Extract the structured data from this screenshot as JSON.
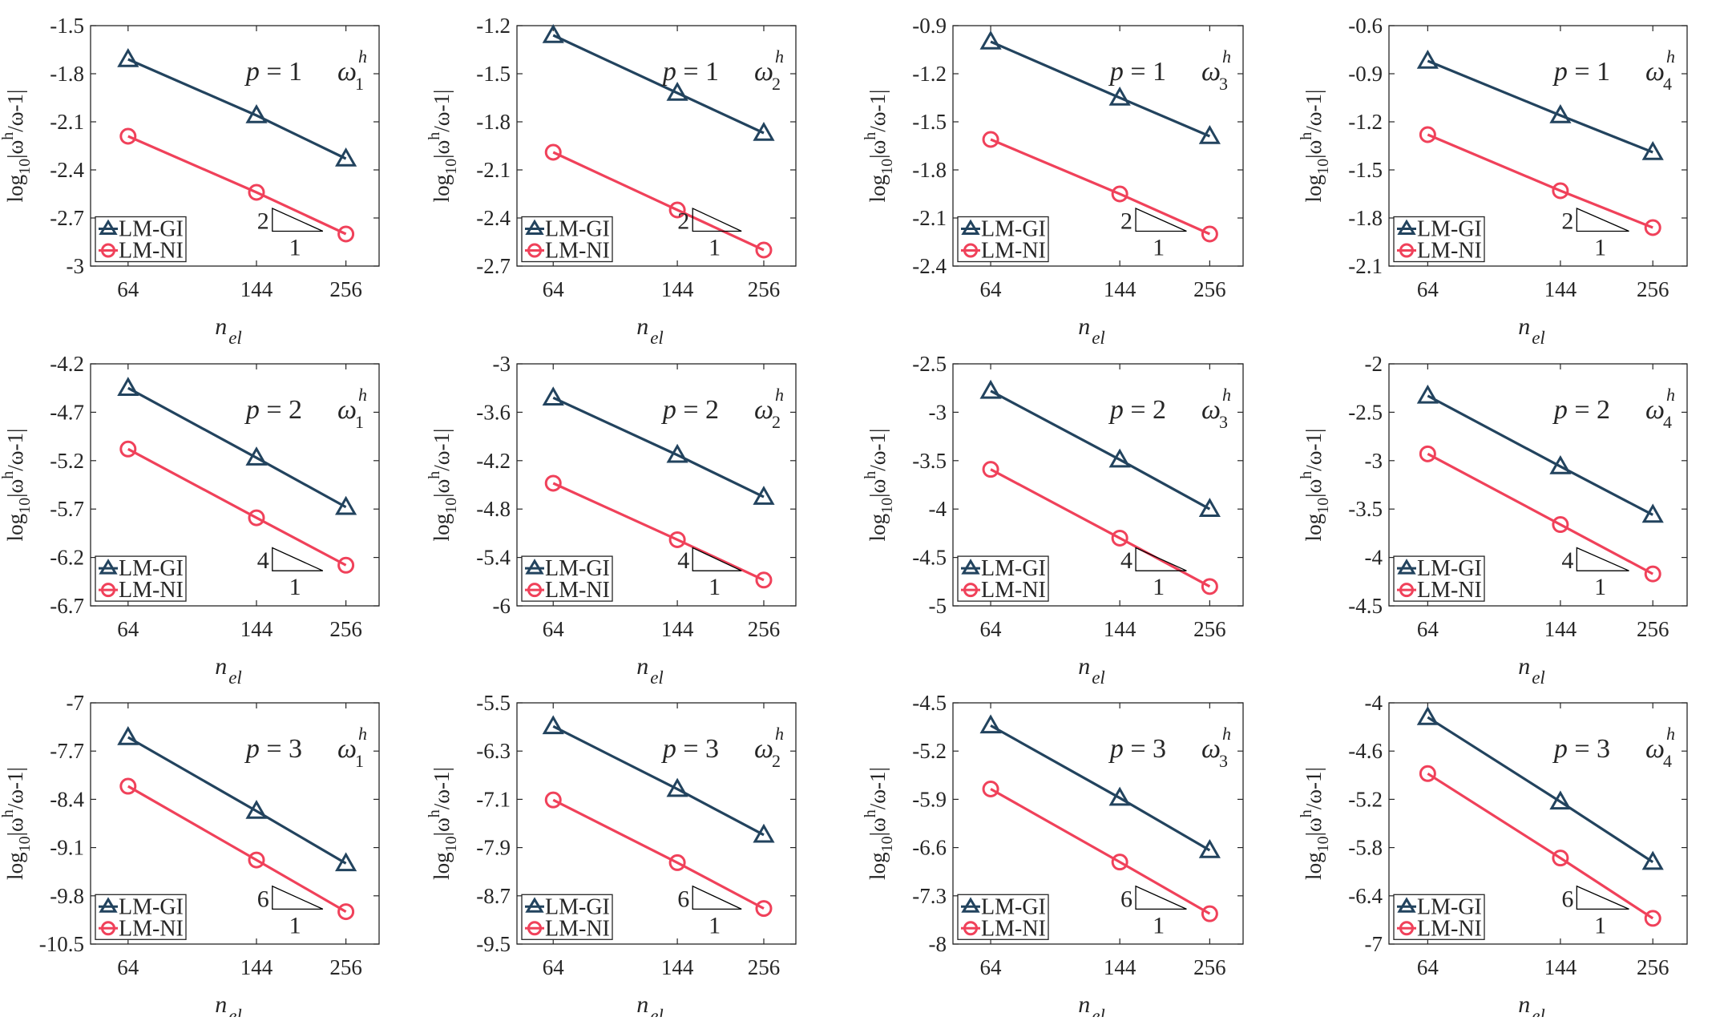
{
  "figure": {
    "colors": {
      "LM-GI": "#22435E",
      "LM-NI": "#F0415A",
      "axis": "#262626"
    },
    "legend": [
      {
        "label": "LM-GI",
        "marker": "triangle-icon",
        "color": "#22435E"
      },
      {
        "label": "LM-NI",
        "marker": "circle-icon",
        "color": "#F0415A"
      }
    ],
    "xlabel_main": "n",
    "xlabel_sub": "el",
    "ylabel": {
      "prefix": "log",
      "sub": "10",
      "body": "|ω",
      "sup": "h",
      "tail": "/ω-1|"
    }
  },
  "chart_data": [
    {
      "type": "line",
      "row": 1,
      "col": 1,
      "title": "p = 1  ω1^h",
      "p": "1",
      "mode": "1",
      "categories": [
        64,
        144,
        256
      ],
      "xticks": [
        "64",
        "144",
        "256"
      ],
      "ylim": [
        -3,
        -1.5
      ],
      "yticks": [
        "-1.5",
        "-1.8",
        "-2.1",
        "-2.4",
        "-2.7",
        "-3"
      ],
      "xlabel": "n_el",
      "ylabel": "log10|ω^h/ω-1|",
      "slope": "2",
      "slope_run": "1",
      "series": [
        {
          "name": "LM-GI",
          "values": [
            -1.71,
            -2.06,
            -2.33
          ]
        },
        {
          "name": "LM-NI",
          "values": [
            -2.19,
            -2.54,
            -2.8
          ]
        }
      ]
    },
    {
      "type": "line",
      "row": 1,
      "col": 2,
      "title": "p = 1  ω2^h",
      "p": "1",
      "mode": "2",
      "categories": [
        64,
        144,
        256
      ],
      "xticks": [
        "64",
        "144",
        "256"
      ],
      "ylim": [
        -2.7,
        -1.2
      ],
      "yticks": [
        "-1.2",
        "-1.5",
        "-1.8",
        "-2.1",
        "-2.4",
        "-2.7"
      ],
      "xlabel": "n_el",
      "ylabel": "log10|ω^h/ω-1|",
      "slope": "2",
      "slope_run": "1",
      "series": [
        {
          "name": "LM-GI",
          "values": [
            -1.26,
            -1.62,
            -1.87
          ]
        },
        {
          "name": "LM-NI",
          "values": [
            -1.99,
            -2.35,
            -2.6
          ]
        }
      ]
    },
    {
      "type": "line",
      "row": 1,
      "col": 3,
      "title": "p = 1  ω3^h",
      "p": "1",
      "mode": "3",
      "categories": [
        64,
        144,
        256
      ],
      "xticks": [
        "64",
        "144",
        "256"
      ],
      "ylim": [
        -2.4,
        -0.9
      ],
      "yticks": [
        "-0.9",
        "-1.2",
        "-1.5",
        "-1.8",
        "-2.1",
        "-2.4"
      ],
      "xlabel": "n_el",
      "ylabel": "log10|ω^h/ω-1|",
      "slope": "2",
      "slope_run": "1",
      "series": [
        {
          "name": "LM-GI",
          "values": [
            -1.0,
            -1.35,
            -1.59
          ]
        },
        {
          "name": "LM-NI",
          "values": [
            -1.61,
            -1.95,
            -2.2
          ]
        }
      ]
    },
    {
      "type": "line",
      "row": 1,
      "col": 4,
      "title": "p = 1  ω4^h",
      "p": "1",
      "mode": "4",
      "categories": [
        64,
        144,
        256
      ],
      "xticks": [
        "64",
        "144",
        "256"
      ],
      "ylim": [
        -2.1,
        -0.6
      ],
      "yticks": [
        "-0.6",
        "-0.9",
        "-1.2",
        "-1.5",
        "-1.8",
        "-2.1"
      ],
      "xlabel": "n_el",
      "ylabel": "log10|ω^h/ω-1|",
      "slope": "2",
      "slope_run": "1",
      "series": [
        {
          "name": "LM-GI",
          "values": [
            -0.82,
            -1.16,
            -1.39
          ]
        },
        {
          "name": "LM-NI",
          "values": [
            -1.28,
            -1.63,
            -1.86
          ]
        }
      ]
    },
    {
      "type": "line",
      "row": 2,
      "col": 1,
      "title": "p = 2  ω1^h",
      "p": "2",
      "mode": "1",
      "categories": [
        64,
        144,
        256
      ],
      "xticks": [
        "64",
        "144",
        "256"
      ],
      "ylim": [
        -6.7,
        -4.2
      ],
      "yticks": [
        "-4.2",
        "-4.7",
        "-5.2",
        "-5.7",
        "-6.2",
        "-6.7"
      ],
      "xlabel": "n_el",
      "ylabel": "log10|ω^h/ω-1|",
      "slope": "4",
      "slope_run": "1",
      "series": [
        {
          "name": "LM-GI",
          "values": [
            -4.45,
            -5.17,
            -5.68
          ]
        },
        {
          "name": "LM-NI",
          "values": [
            -5.08,
            -5.79,
            -6.28
          ]
        }
      ]
    },
    {
      "type": "line",
      "row": 2,
      "col": 2,
      "title": "p = 2  ω2^h",
      "p": "2",
      "mode": "2",
      "categories": [
        64,
        144,
        256
      ],
      "xticks": [
        "64",
        "144",
        "256"
      ],
      "ylim": [
        -6,
        -3
      ],
      "yticks": [
        "-3",
        "-3.6",
        "-4.2",
        "-4.8",
        "-5.4",
        "-6"
      ],
      "xlabel": "n_el",
      "ylabel": "log10|ω^h/ω-1|",
      "slope": "4",
      "slope_run": "1",
      "series": [
        {
          "name": "LM-GI",
          "values": [
            -3.42,
            -4.13,
            -4.65
          ]
        },
        {
          "name": "LM-NI",
          "values": [
            -4.48,
            -5.18,
            -5.68
          ]
        }
      ]
    },
    {
      "type": "line",
      "row": 2,
      "col": 3,
      "title": "p = 2  ω3^h",
      "p": "2",
      "mode": "3",
      "categories": [
        64,
        144,
        256
      ],
      "xticks": [
        "64",
        "144",
        "256"
      ],
      "ylim": [
        -5,
        -2.5
      ],
      "yticks": [
        "-2.5",
        "-3",
        "-3.5",
        "-4",
        "-4.5",
        "-5"
      ],
      "xlabel": "n_el",
      "ylabel": "log10|ω^h/ω-1|",
      "slope": "4",
      "slope_run": "1",
      "series": [
        {
          "name": "LM-GI",
          "values": [
            -2.78,
            -3.49,
            -4.0
          ]
        },
        {
          "name": "LM-NI",
          "values": [
            -3.59,
            -4.3,
            -4.8
          ]
        }
      ]
    },
    {
      "type": "line",
      "row": 2,
      "col": 4,
      "title": "p = 2  ω4^h",
      "p": "2",
      "mode": "4",
      "categories": [
        64,
        144,
        256
      ],
      "xticks": [
        "64",
        "144",
        "256"
      ],
      "ylim": [
        -4.5,
        -2
      ],
      "yticks": [
        "-2",
        "-2.5",
        "-3",
        "-3.5",
        "-4",
        "-4.5"
      ],
      "xlabel": "n_el",
      "ylabel": "log10|ω^h/ω-1|",
      "slope": "4",
      "slope_run": "1",
      "series": [
        {
          "name": "LM-GI",
          "values": [
            -2.33,
            -3.06,
            -3.56
          ]
        },
        {
          "name": "LM-NI",
          "values": [
            -2.93,
            -3.66,
            -4.17
          ]
        }
      ]
    },
    {
      "type": "line",
      "row": 3,
      "col": 1,
      "title": "p = 3  ω1^h",
      "p": "3",
      "mode": "1",
      "categories": [
        64,
        144,
        256
      ],
      "xticks": [
        "64",
        "144",
        "256"
      ],
      "ylim": [
        -10.5,
        -7
      ],
      "yticks": [
        "-7",
        "-7.7",
        "-8.4",
        "-9.1",
        "-9.8",
        "-10.5"
      ],
      "xlabel": "n_el",
      "ylabel": "log10|ω^h/ω-1|",
      "slope": "6",
      "slope_run": "1",
      "series": [
        {
          "name": "LM-GI",
          "values": [
            -7.5,
            -8.57,
            -9.33
          ]
        },
        {
          "name": "LM-NI",
          "values": [
            -8.21,
            -9.28,
            -10.03
          ]
        }
      ]
    },
    {
      "type": "line",
      "row": 3,
      "col": 2,
      "title": "p = 3  ω2^h",
      "p": "3",
      "mode": "2",
      "categories": [
        64,
        144,
        256
      ],
      "xticks": [
        "64",
        "144",
        "256"
      ],
      "ylim": [
        -9.5,
        -5.5
      ],
      "yticks": [
        "-5.5",
        "-6.3",
        "-7.1",
        "-7.9",
        "-8.7",
        "-9.5"
      ],
      "xlabel": "n_el",
      "ylabel": "log10|ω^h/ω-1|",
      "slope": "6",
      "slope_run": "1",
      "series": [
        {
          "name": "LM-GI",
          "values": [
            -5.89,
            -6.93,
            -7.69
          ]
        },
        {
          "name": "LM-NI",
          "values": [
            -7.11,
            -8.15,
            -8.91
          ]
        }
      ]
    },
    {
      "type": "line",
      "row": 3,
      "col": 3,
      "title": "p = 3  ω3^h",
      "p": "3",
      "mode": "3",
      "categories": [
        64,
        144,
        256
      ],
      "xticks": [
        "64",
        "144",
        "256"
      ],
      "ylim": [
        -8,
        -4.5
      ],
      "yticks": [
        "-4.5",
        "-5.2",
        "-5.9",
        "-6.6",
        "-7.3",
        "-8"
      ],
      "xlabel": "n_el",
      "ylabel": "log10|ω^h/ω-1|",
      "slope": "6",
      "slope_run": "1",
      "series": [
        {
          "name": "LM-GI",
          "values": [
            -4.83,
            -5.88,
            -6.64
          ]
        },
        {
          "name": "LM-NI",
          "values": [
            -5.75,
            -6.81,
            -7.56
          ]
        }
      ]
    },
    {
      "type": "line",
      "row": 3,
      "col": 4,
      "title": "p = 3  ω4^h",
      "p": "3",
      "mode": "4",
      "categories": [
        64,
        144,
        256
      ],
      "xticks": [
        "64",
        "144",
        "256"
      ],
      "ylim": [
        -7,
        -4
      ],
      "yticks": [
        "-4",
        "-4.6",
        "-5.2",
        "-5.8",
        "-6.4",
        "-7"
      ],
      "xlabel": "n_el",
      "ylabel": "log10|ω^h/ω-1|",
      "slope": "6",
      "slope_run": "1",
      "series": [
        {
          "name": "LM-GI",
          "values": [
            -4.18,
            -5.23,
            -5.98
          ]
        },
        {
          "name": "LM-NI",
          "values": [
            -4.88,
            -5.93,
            -6.68
          ]
        }
      ]
    }
  ]
}
